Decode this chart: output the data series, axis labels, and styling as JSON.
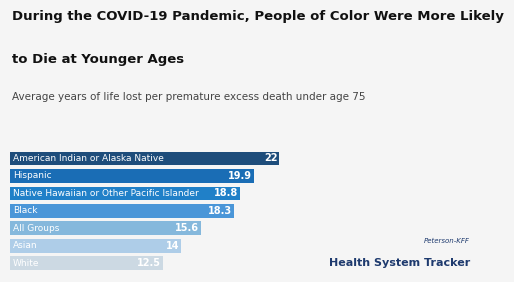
{
  "title_line1": "During the COVID-19 Pandemic, People of Color Were More Likely",
  "title_line2": "to Die at Younger Ages",
  "subtitle": "Average years of life lost per premature excess death under age 75",
  "categories": [
    "American Indian or Alaska Native",
    "Hispanic",
    "Native Hawaiian or Other Pacific Islander",
    "Black",
    "All Groups",
    "Asian",
    "White"
  ],
  "values": [
    22,
    19.9,
    18.8,
    18.3,
    15.6,
    14,
    12.5
  ],
  "bar_colors": [
    "#1e4d7b",
    "#1a6db5",
    "#2080c8",
    "#4a96d8",
    "#85b8dc",
    "#aecde8",
    "#ccd9e3"
  ],
  "background_color": "#f5f5f5",
  "xlim": [
    0,
    24
  ],
  "bar_height": 0.78,
  "bar_gap": 0.22,
  "value_fontsize": 7.0,
  "label_fontsize": 6.5,
  "title_fontsize": 9.5,
  "subtitle_fontsize": 7.5,
  "watermark_line1": "Peterson-KFF",
  "watermark_line2": "Health System Tracker",
  "watermark_color": "#1e3a6e"
}
